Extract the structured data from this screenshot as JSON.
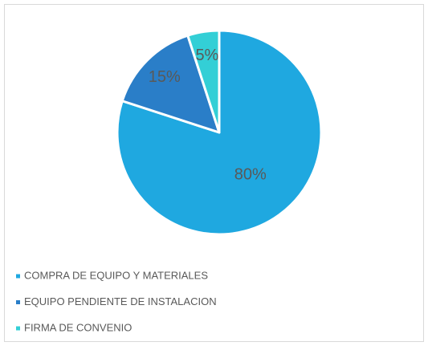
{
  "chart_data": {
    "type": "pie",
    "categories": [
      "COMPRA DE EQUIPO Y MATERIALES",
      "EQUIPO PENDIENTE DE INSTALACION",
      "FIRMA DE CONVENIO"
    ],
    "values": [
      80,
      15,
      5
    ],
    "value_labels": [
      "80%",
      "15%",
      "5%"
    ],
    "colors": [
      "#1fa8e0",
      "#2a7ec8",
      "#33cfd6"
    ],
    "legend": "bottom"
  }
}
